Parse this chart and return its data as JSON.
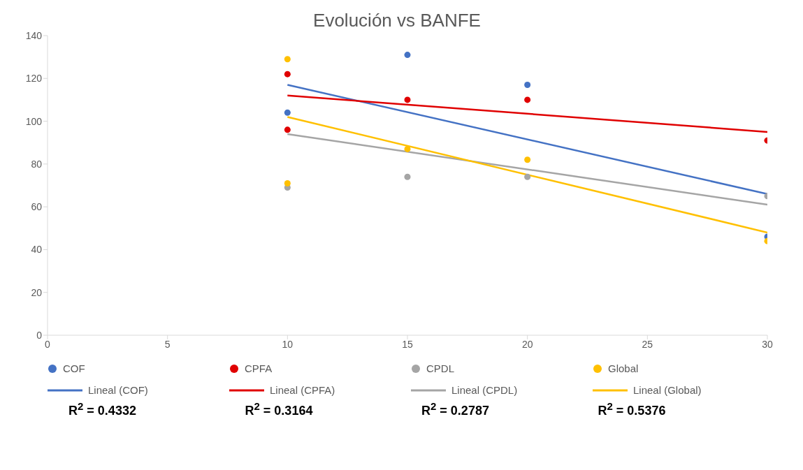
{
  "chart_data": {
    "type": "scatter",
    "title": "Evolución vs BANFE",
    "xlim": [
      0,
      30
    ],
    "xticks": [
      0,
      5,
      10,
      15,
      20,
      25,
      30
    ],
    "ylim": [
      0,
      140
    ],
    "yticks": [
      0,
      20,
      40,
      60,
      80,
      100,
      120,
      140
    ],
    "grid": false,
    "legend": "bottom",
    "series": [
      {
        "name": "COF",
        "color": "#4472c4",
        "marker": "circle",
        "x": [
          10,
          15,
          20,
          30
        ],
        "values": [
          104,
          131,
          117,
          46
        ]
      },
      {
        "name": "CPFA",
        "color": "#e00000",
        "marker": "circle",
        "x": [
          10,
          10,
          15,
          20,
          30
        ],
        "values": [
          122,
          96,
          110,
          110,
          91
        ]
      },
      {
        "name": "CPDL",
        "color": "#a5a5a5",
        "marker": "circle",
        "x": [
          10,
          15,
          20,
          30
        ],
        "values": [
          69,
          74,
          74,
          65
        ]
      },
      {
        "name": "Global",
        "color": "#ffc000",
        "marker": "circle",
        "x": [
          10,
          10,
          15,
          20,
          30
        ],
        "values": [
          129,
          71,
          87,
          82,
          44
        ]
      },
      {
        "name": "Lineal (COF)",
        "type": "line",
        "marker": "none",
        "color": "#4472c4",
        "x": [
          10,
          30
        ],
        "values": [
          117,
          66
        ]
      },
      {
        "name": "Lineal (CPFA)",
        "type": "line",
        "marker": "none",
        "color": "#e00000",
        "x": [
          10,
          30
        ],
        "values": [
          112,
          95
        ]
      },
      {
        "name": "Lineal (CPDL)",
        "type": "line",
        "marker": "none",
        "color": "#a5a5a5",
        "x": [
          10,
          30
        ],
        "values": [
          94,
          61
        ]
      },
      {
        "name": "Lineal (Global)",
        "type": "line",
        "marker": "none",
        "color": "#ffc000",
        "x": [
          10,
          30
        ],
        "values": [
          102,
          48
        ]
      }
    ],
    "annotations": [
      "R$^{2}$ = 0.4332",
      "R$^{2}$ = 0.3164",
      "R$^{2}$ = 0.2787",
      "R$^{2}$ = 0.5376"
    ]
  }
}
